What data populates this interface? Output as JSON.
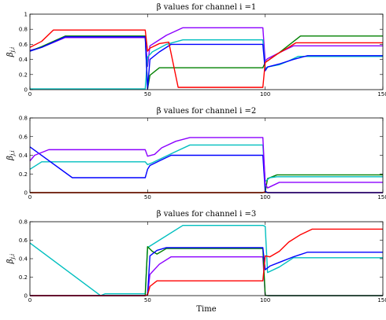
{
  "chart_data": [
    {
      "type": "line",
      "title": "β values for channel i =1",
      "ylabel": "β_{j,i}",
      "xlabel": "",
      "xlim": [
        0,
        150
      ],
      "ylim": [
        0,
        1
      ],
      "xticks": [
        0,
        50,
        100,
        150
      ],
      "yticks": [
        0,
        0.2,
        0.4,
        0.6,
        0.8,
        1
      ],
      "ytick_labels": [
        "0",
        "0.2",
        "0.4",
        "0.6",
        "0.8",
        "1"
      ],
      "grid": false,
      "series": [
        {
          "color": "#8B00FF",
          "points": [
            [
              0,
              0.52
            ],
            [
              5,
              0.56
            ],
            [
              15,
              0.69
            ],
            [
              49,
              0.69
            ],
            [
              50,
              0.31
            ],
            [
              51,
              0.58
            ],
            [
              53,
              0.62
            ],
            [
              58,
              0.72
            ],
            [
              65,
              0.82
            ],
            [
              99,
              0.82
            ],
            [
              100,
              0.38
            ],
            [
              101,
              0.41
            ],
            [
              106,
              0.49
            ],
            [
              112,
              0.58
            ],
            [
              150,
              0.58
            ]
          ]
        },
        {
          "color": "#00BFBF",
          "points": [
            [
              0,
              0.01
            ],
            [
              49,
              0.01
            ],
            [
              50,
              0.43
            ],
            [
              52,
              0.5
            ],
            [
              58,
              0.6
            ],
            [
              65,
              0.66
            ],
            [
              99,
              0.66
            ],
            [
              100,
              0.28
            ],
            [
              101,
              0.3
            ],
            [
              106,
              0.33
            ],
            [
              110,
              0.38
            ],
            [
              114,
              0.44
            ],
            [
              150,
              0.44
            ]
          ]
        },
        {
          "color": "#008000",
          "points": [
            [
              0,
              0.51
            ],
            [
              5,
              0.57
            ],
            [
              15,
              0.71
            ],
            [
              49,
              0.71
            ],
            [
              50,
              0.01
            ],
            [
              51,
              0.19
            ],
            [
              55,
              0.29
            ],
            [
              99,
              0.29
            ],
            [
              100,
              0.36
            ],
            [
              106,
              0.49
            ],
            [
              115,
              0.71
            ],
            [
              150,
              0.71
            ]
          ]
        },
        {
          "color": "#0000FF",
          "points": [
            [
              0,
              0.51
            ],
            [
              5,
              0.56
            ],
            [
              15,
              0.7
            ],
            [
              49,
              0.7
            ],
            [
              50,
              0.01
            ],
            [
              51,
              0.4
            ],
            [
              55,
              0.5
            ],
            [
              60,
              0.6
            ],
            [
              99,
              0.6
            ],
            [
              100,
              0.25
            ],
            [
              101,
              0.3
            ],
            [
              106,
              0.34
            ],
            [
              112,
              0.4
            ],
            [
              118,
              0.45
            ],
            [
              150,
              0.45
            ]
          ]
        },
        {
          "color": "#FF0000",
          "points": [
            [
              0,
              0.56
            ],
            [
              5,
              0.64
            ],
            [
              10,
              0.79
            ],
            [
              49,
              0.79
            ],
            [
              50,
              0.51
            ],
            [
              51,
              0.55
            ],
            [
              55,
              0.61
            ],
            [
              59,
              0.63
            ],
            [
              63,
              0.03
            ],
            [
              99,
              0.03
            ],
            [
              100,
              0.36
            ],
            [
              105,
              0.47
            ],
            [
              110,
              0.56
            ],
            [
              113,
              0.62
            ],
            [
              150,
              0.62
            ]
          ]
        }
      ]
    },
    {
      "type": "line",
      "title": "β values for channel i =2",
      "ylabel": "β_{j,i}",
      "xlabel": "",
      "xlim": [
        0,
        150
      ],
      "ylim": [
        0,
        0.8
      ],
      "xticks": [
        0,
        50,
        100,
        150
      ],
      "yticks": [
        0,
        0.2,
        0.4,
        0.6,
        0.8
      ],
      "ytick_labels": [
        "0",
        "0.2",
        "0.4",
        "0.6",
        "0.8"
      ],
      "grid": false,
      "series": [
        {
          "color": "#008000",
          "points": [
            [
              0,
              0
            ],
            [
              99,
              0
            ],
            [
              100,
              0.005
            ],
            [
              101,
              0.15
            ],
            [
              105,
              0.19
            ],
            [
              150,
              0.19
            ]
          ]
        },
        {
          "color": "#FF0000",
          "points": [
            [
              0,
              0
            ],
            [
              99,
              0
            ],
            [
              100,
              0.01
            ],
            [
              101,
              0
            ],
            [
              150,
              0
            ]
          ]
        },
        {
          "color": "#00BFBF",
          "points": [
            [
              0,
              0.25
            ],
            [
              5,
              0.33
            ],
            [
              49,
              0.33
            ],
            [
              50,
              0.3
            ],
            [
              52,
              0.32
            ],
            [
              57,
              0.38
            ],
            [
              62,
              0.44
            ],
            [
              68,
              0.51
            ],
            [
              99,
              0.51
            ],
            [
              100,
              0.12
            ],
            [
              102,
              0.16
            ],
            [
              105,
              0.17
            ],
            [
              150,
              0.17
            ]
          ]
        },
        {
          "color": "#0000FF",
          "points": [
            [
              0,
              0.49
            ],
            [
              18,
              0.16
            ],
            [
              49,
              0.16
            ],
            [
              50,
              0.25
            ],
            [
              51,
              0.29
            ],
            [
              55,
              0.34
            ],
            [
              60,
              0.4
            ],
            [
              99,
              0.4
            ],
            [
              100,
              0.015
            ],
            [
              101,
              0
            ],
            [
              150,
              0
            ]
          ]
        },
        {
          "color": "#8B00FF",
          "points": [
            [
              0,
              0.34
            ],
            [
              2,
              0.4
            ],
            [
              8,
              0.46
            ],
            [
              49,
              0.46
            ],
            [
              50,
              0.39
            ],
            [
              53,
              0.41
            ],
            [
              56,
              0.48
            ],
            [
              62,
              0.55
            ],
            [
              68,
              0.59
            ],
            [
              99,
              0.59
            ],
            [
              100,
              0.1
            ],
            [
              101,
              0.05
            ],
            [
              106,
              0.11
            ],
            [
              150,
              0.11
            ]
          ]
        }
      ]
    },
    {
      "type": "line",
      "title": "β values for channel i =3",
      "ylabel": "β_{j,i}",
      "xlabel": "Time",
      "xlim": [
        0,
        150
      ],
      "ylim": [
        0,
        0.8
      ],
      "xticks": [
        0,
        50,
        100,
        150
      ],
      "yticks": [
        0,
        0.2,
        0.4,
        0.6,
        0.8
      ],
      "ytick_labels": [
        "0",
        "0.2",
        "0.4",
        "0.6",
        "0.8"
      ],
      "grid": false,
      "series": [
        {
          "color": "#8B00FF",
          "points": [
            [
              0,
              0
            ],
            [
              49,
              0
            ],
            [
              50,
              0.01
            ],
            [
              51,
              0.23
            ],
            [
              55,
              0.34
            ],
            [
              60,
              0.42
            ],
            [
              99,
              0.42
            ],
            [
              100,
              0.005
            ],
            [
              101,
              0
            ],
            [
              150,
              0
            ]
          ]
        },
        {
          "color": "#00BFBF",
          "points": [
            [
              0,
              0.57
            ],
            [
              30,
              0
            ],
            [
              32,
              0.02
            ],
            [
              49,
              0.02
            ],
            [
              50,
              0.52
            ],
            [
              65,
              0.76
            ],
            [
              99,
              0.76
            ],
            [
              100,
              0.75
            ],
            [
              101,
              0.25
            ],
            [
              106,
              0.31
            ],
            [
              112,
              0.41
            ],
            [
              150,
              0.41
            ]
          ]
        },
        {
          "color": "#008000",
          "points": [
            [
              0,
              0
            ],
            [
              49,
              0
            ],
            [
              50,
              0.53
            ],
            [
              52,
              0.48
            ],
            [
              54,
              0.45
            ],
            [
              58,
              0.51
            ],
            [
              99,
              0.51
            ],
            [
              100,
              0.005
            ],
            [
              101,
              0
            ],
            [
              150,
              0
            ]
          ]
        },
        {
          "color": "#0000FF",
          "points": [
            [
              0,
              0
            ],
            [
              49,
              0
            ],
            [
              50,
              0.01
            ],
            [
              51,
              0.43
            ],
            [
              54,
              0.49
            ],
            [
              58,
              0.52
            ],
            [
              99,
              0.52
            ],
            [
              100,
              0.28
            ],
            [
              102,
              0.32
            ],
            [
              106,
              0.36
            ],
            [
              112,
              0.42
            ],
            [
              118,
              0.47
            ],
            [
              150,
              0.47
            ]
          ]
        },
        {
          "color": "#FF0000",
          "points": [
            [
              0,
              0
            ],
            [
              49,
              0
            ],
            [
              50,
              0.01
            ],
            [
              51,
              0.1
            ],
            [
              54,
              0.16
            ],
            [
              99,
              0.16
            ],
            [
              100,
              0.43
            ],
            [
              102,
              0.42
            ],
            [
              106,
              0.48
            ],
            [
              110,
              0.58
            ],
            [
              115,
              0.66
            ],
            [
              120,
              0.72
            ],
            [
              150,
              0.72
            ]
          ]
        }
      ]
    }
  ]
}
